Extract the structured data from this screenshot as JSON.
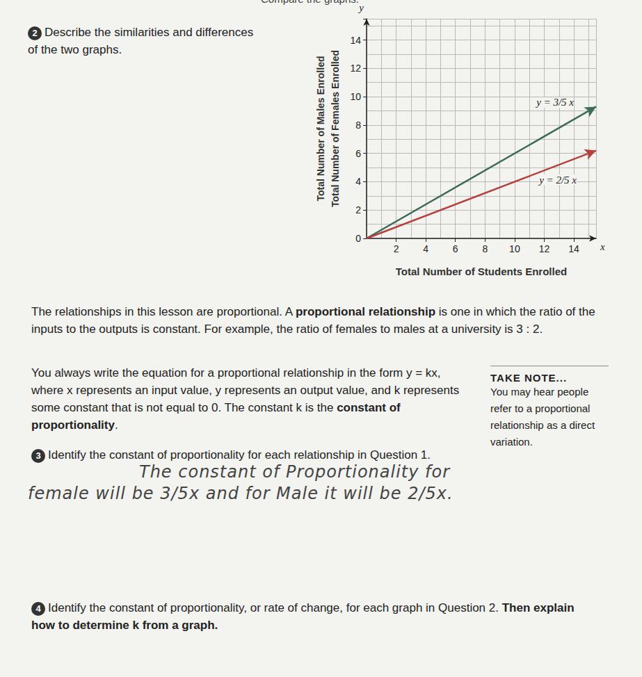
{
  "page": {
    "header": "Compare the graphs.",
    "q2": {
      "number": "2",
      "text": "Describe the similarities and differences of the two graphs."
    },
    "paragraph1": [
      {
        "text": "The relationships in this lesson are proportional. A "
      },
      {
        "text": "proportional relationship",
        "bold": true
      },
      {
        "text": " is one in which the ratio of the inputs to the outputs is constant. For example, the ratio of females to males at a university is 3 : 2."
      }
    ],
    "paragraph2": [
      {
        "text": "You always write the equation for a proportional relationship in the form y = kx, where x represents an input value, y represents an output value, and k represents some constant that is not equal to 0. The constant k is the "
      },
      {
        "text": "constant of proportionality",
        "bold": true
      },
      {
        "text": "."
      }
    ],
    "take_note": {
      "title": "TAKE NOTE...",
      "text": "You may hear people refer to a proportional relationship as a direct variation."
    },
    "q3": {
      "number": "3",
      "text": "Identify the constant of proportionality for each relationship in Question 1.",
      "answer": "The constant of Proportionality for female will be 3/5x and for Male it will be 2/5x."
    },
    "q4": {
      "number": "4",
      "runs": [
        {
          "text": "Identify the constant of proportionality, or rate of change, for each graph in Question 2. "
        },
        {
          "text": "Then explain how to determine k from a graph.",
          "bold": true
        }
      ]
    }
  },
  "chart_data": {
    "type": "line",
    "x_label": "Total Number of Students Enrolled",
    "y_label": [
      "Total Number of Males Enrolled",
      "Total Number of Females Enrolled"
    ],
    "annotations": [
      "y",
      "x"
    ],
    "x": [
      0,
      15.5
    ],
    "series": [
      {
        "name": "y = 3/5 x",
        "color": "#3d6b55",
        "values": [
          0,
          9.3
        ]
      },
      {
        "name": "y = 2/5 x",
        "color": "#b5413c",
        "values": [
          0,
          6.2
        ]
      }
    ],
    "xlim": [
      0,
      15.5
    ],
    "xticks": [
      2,
      4,
      6,
      8,
      10,
      12,
      14
    ],
    "ylim": [
      0,
      15.5
    ],
    "yticks": [
      0,
      2,
      4,
      6,
      8,
      10,
      12,
      14
    ],
    "grid": true,
    "marker": "arrow"
  }
}
